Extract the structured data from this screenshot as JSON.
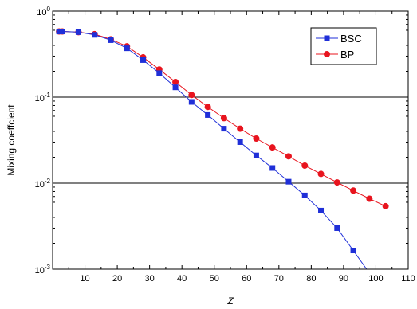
{
  "chart_data": {
    "type": "line",
    "title": "",
    "xlabel": "Z",
    "ylabel": "Mixing coeffcient",
    "xlim": [
      0,
      110
    ],
    "ylim": [
      0.001,
      1
    ],
    "yscale": "log",
    "x_ticks": [
      "10",
      "20",
      "30",
      "40",
      "50",
      "60",
      "70",
      "80",
      "90",
      "100",
      "110"
    ],
    "y_ticks": [
      {
        "base": "10",
        "exp": "0",
        "value": 1
      },
      {
        "base": "10",
        "exp": "-1",
        "value": 0.1
      },
      {
        "base": "10",
        "exp": "-2",
        "value": 0.01
      },
      {
        "base": "10",
        "exp": "-3",
        "value": 0.001
      }
    ],
    "gridlines_y": [
      0.1,
      0.01
    ],
    "legend_position": "top-right",
    "series": [
      {
        "name": "BSC",
        "color": "#1f2fd8",
        "marker": "square",
        "x": [
          2,
          3,
          8,
          13,
          18,
          23,
          28,
          33,
          38,
          43,
          48,
          53,
          58,
          63,
          68,
          73,
          78,
          83,
          88,
          93,
          98
        ],
        "y": [
          0.58,
          0.58,
          0.57,
          0.53,
          0.46,
          0.37,
          0.27,
          0.19,
          0.13,
          0.088,
          0.062,
          0.043,
          0.03,
          0.021,
          0.015,
          0.0104,
          0.0072,
          0.0048,
          0.003,
          0.00165,
          0.0009
        ]
      },
      {
        "name": "BP",
        "color": "#e8141e",
        "marker": "circle",
        "x": [
          2,
          3,
          8,
          13,
          18,
          23,
          28,
          33,
          38,
          43,
          48,
          53,
          58,
          63,
          68,
          73,
          78,
          83,
          88,
          93,
          98,
          103
        ],
        "y": [
          0.58,
          0.58,
          0.57,
          0.54,
          0.47,
          0.39,
          0.29,
          0.21,
          0.15,
          0.106,
          0.077,
          0.057,
          0.043,
          0.033,
          0.026,
          0.0205,
          0.016,
          0.0128,
          0.0102,
          0.0082,
          0.0066,
          0.0054
        ]
      }
    ]
  }
}
